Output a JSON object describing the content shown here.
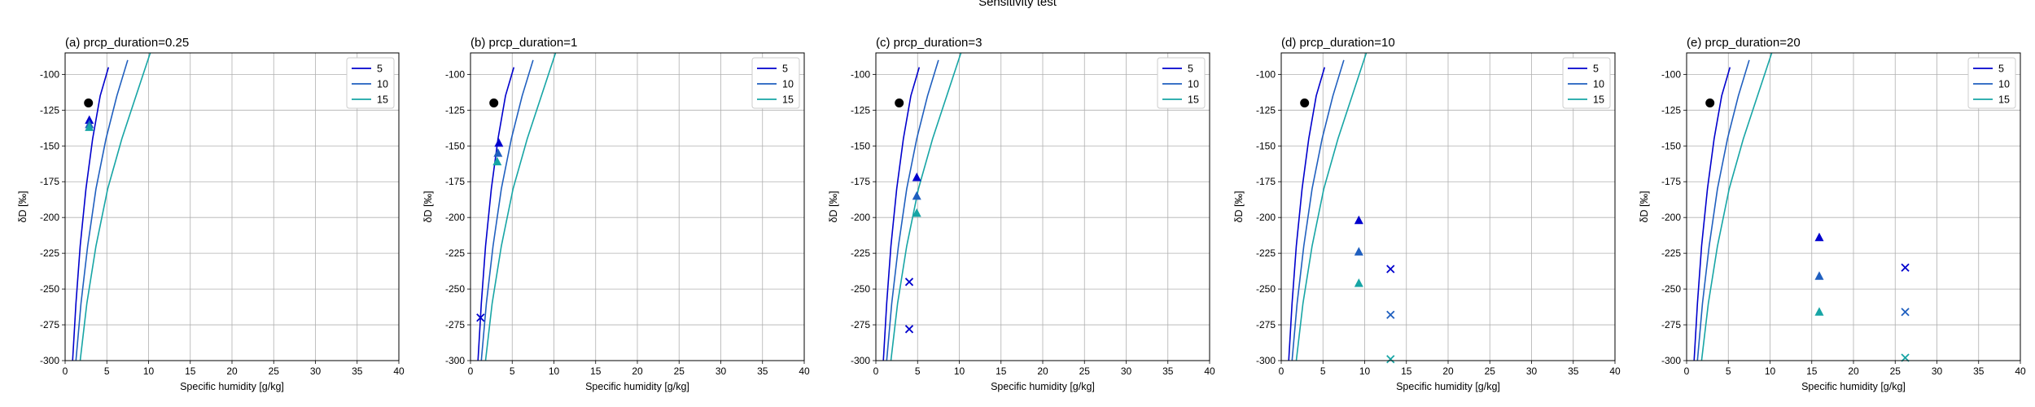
{
  "figure_title": "Sensitivity test",
  "chart_data": [
    {
      "type": "line",
      "title": "(a) prcp_duration=0.25",
      "xlabel": "Specific humidity [g/kg]",
      "ylabel": "δD [‰]",
      "xlim": [
        0,
        40
      ],
      "ylim": [
        -300,
        -85
      ],
      "xticks": [
        "0",
        "5",
        "10",
        "15",
        "20",
        "25",
        "30",
        "35",
        "40"
      ],
      "yticks": [
        "-100",
        "-125",
        "-150",
        "-175",
        "-200",
        "-225",
        "-250",
        "-275",
        "-300"
      ],
      "grid": true,
      "legend_position": "top-right",
      "series": [
        {
          "name": "5",
          "color": "#0000cd",
          "x": [
            0.9,
            1.3,
            1.8,
            2.5,
            3.3,
            4.2,
            5.2
          ],
          "y": [
            -300,
            -260,
            -220,
            -180,
            -145,
            -115,
            -95
          ]
        },
        {
          "name": "10",
          "color": "#1f5fbf",
          "x": [
            1.3,
            1.9,
            2.7,
            3.7,
            4.9,
            6.2,
            7.5
          ],
          "y": [
            -300,
            -260,
            -220,
            -180,
            -145,
            -115,
            -90
          ]
        },
        {
          "name": "15",
          "color": "#17a5a5",
          "x": [
            1.8,
            2.6,
            3.7,
            5.1,
            6.8,
            8.5,
            10.2
          ],
          "y": [
            -300,
            -260,
            -220,
            -180,
            -145,
            -115,
            -85
          ]
        }
      ],
      "markers": [
        {
          "kind": "circle",
          "color": "#000000",
          "x": 2.8,
          "y": -120
        },
        {
          "kind": "triangle",
          "color": "#0000cd",
          "x": 2.9,
          "y": -132
        },
        {
          "kind": "triangle",
          "color": "#1f5fbf",
          "x": 2.9,
          "y": -135
        },
        {
          "kind": "triangle",
          "color": "#17a5a5",
          "x": 2.9,
          "y": -137
        }
      ]
    },
    {
      "type": "line",
      "title": "(b) prcp_duration=1",
      "xlabel": "Specific humidity [g/kg]",
      "ylabel": "δD [‰]",
      "xlim": [
        0,
        40
      ],
      "ylim": [
        -300,
        -85
      ],
      "xticks": [
        "0",
        "5",
        "10",
        "15",
        "20",
        "25",
        "30",
        "35",
        "40"
      ],
      "yticks": [
        "-100",
        "-125",
        "-150",
        "-175",
        "-200",
        "-225",
        "-250",
        "-275",
        "-300"
      ],
      "grid": true,
      "legend_position": "top-right",
      "series": [
        {
          "name": "5",
          "color": "#0000cd",
          "x": [
            0.9,
            1.3,
            1.8,
            2.5,
            3.3,
            4.2,
            5.2
          ],
          "y": [
            -300,
            -260,
            -220,
            -180,
            -145,
            -115,
            -95
          ]
        },
        {
          "name": "10",
          "color": "#1f5fbf",
          "x": [
            1.3,
            1.9,
            2.7,
            3.7,
            4.9,
            6.2,
            7.5
          ],
          "y": [
            -300,
            -260,
            -220,
            -180,
            -145,
            -115,
            -90
          ]
        },
        {
          "name": "15",
          "color": "#17a5a5",
          "x": [
            1.8,
            2.6,
            3.7,
            5.1,
            6.8,
            8.5,
            10.2
          ],
          "y": [
            -300,
            -260,
            -220,
            -180,
            -145,
            -115,
            -85
          ]
        }
      ],
      "markers": [
        {
          "kind": "circle",
          "color": "#000000",
          "x": 2.8,
          "y": -120
        },
        {
          "kind": "triangle",
          "color": "#0000cd",
          "x": 3.4,
          "y": -148
        },
        {
          "kind": "triangle",
          "color": "#1f5fbf",
          "x": 3.3,
          "y": -155
        },
        {
          "kind": "triangle",
          "color": "#17a5a5",
          "x": 3.2,
          "y": -161
        },
        {
          "kind": "cross",
          "color": "#0000cd",
          "x": 1.2,
          "y": -270
        }
      ]
    },
    {
      "type": "line",
      "title": "(c) prcp_duration=3",
      "xlabel": "Specific humidity [g/kg]",
      "ylabel": "δD [‰]",
      "xlim": [
        0,
        40
      ],
      "ylim": [
        -300,
        -85
      ],
      "xticks": [
        "0",
        "5",
        "10",
        "15",
        "20",
        "25",
        "30",
        "35",
        "40"
      ],
      "yticks": [
        "-100",
        "-125",
        "-150",
        "-175",
        "-200",
        "-225",
        "-250",
        "-275",
        "-300"
      ],
      "grid": true,
      "legend_position": "top-right",
      "series": [
        {
          "name": "5",
          "color": "#0000cd",
          "x": [
            0.9,
            1.3,
            1.8,
            2.5,
            3.3,
            4.2,
            5.2
          ],
          "y": [
            -300,
            -260,
            -220,
            -180,
            -145,
            -115,
            -95
          ]
        },
        {
          "name": "10",
          "color": "#1f5fbf",
          "x": [
            1.3,
            1.9,
            2.7,
            3.7,
            4.9,
            6.2,
            7.5
          ],
          "y": [
            -300,
            -260,
            -220,
            -180,
            -145,
            -115,
            -90
          ]
        },
        {
          "name": "15",
          "color": "#17a5a5",
          "x": [
            1.8,
            2.6,
            3.7,
            5.1,
            6.8,
            8.5,
            10.2
          ],
          "y": [
            -300,
            -260,
            -220,
            -180,
            -145,
            -115,
            -85
          ]
        }
      ],
      "markers": [
        {
          "kind": "circle",
          "color": "#000000",
          "x": 2.8,
          "y": -120
        },
        {
          "kind": "triangle",
          "color": "#0000cd",
          "x": 4.9,
          "y": -172
        },
        {
          "kind": "triangle",
          "color": "#1f5fbf",
          "x": 4.9,
          "y": -185
        },
        {
          "kind": "triangle",
          "color": "#17a5a5",
          "x": 4.9,
          "y": -197
        },
        {
          "kind": "cross",
          "color": "#0000cd",
          "x": 4.0,
          "y": -245
        },
        {
          "kind": "cross",
          "color": "#0000cd",
          "x": 4.0,
          "y": -278
        }
      ]
    },
    {
      "type": "line",
      "title": "(d) prcp_duration=10",
      "xlabel": "Specific humidity [g/kg]",
      "ylabel": "δD [‰]",
      "xlim": [
        0,
        40
      ],
      "ylim": [
        -300,
        -85
      ],
      "xticks": [
        "0",
        "5",
        "10",
        "15",
        "20",
        "25",
        "30",
        "35",
        "40"
      ],
      "yticks": [
        "-100",
        "-125",
        "-150",
        "-175",
        "-200",
        "-225",
        "-250",
        "-275",
        "-300"
      ],
      "grid": true,
      "legend_position": "top-right",
      "series": [
        {
          "name": "5",
          "color": "#0000cd",
          "x": [
            0.9,
            1.3,
            1.8,
            2.5,
            3.3,
            4.2,
            5.2
          ],
          "y": [
            -300,
            -260,
            -220,
            -180,
            -145,
            -115,
            -95
          ]
        },
        {
          "name": "10",
          "color": "#1f5fbf",
          "x": [
            1.3,
            1.9,
            2.7,
            3.7,
            4.9,
            6.2,
            7.5
          ],
          "y": [
            -300,
            -260,
            -220,
            -180,
            -145,
            -115,
            -90
          ]
        },
        {
          "name": "15",
          "color": "#17a5a5",
          "x": [
            1.8,
            2.6,
            3.7,
            5.1,
            6.8,
            8.5,
            10.2
          ],
          "y": [
            -300,
            -260,
            -220,
            -180,
            -145,
            -115,
            -85
          ]
        }
      ],
      "markers": [
        {
          "kind": "circle",
          "color": "#000000",
          "x": 2.8,
          "y": -120
        },
        {
          "kind": "triangle",
          "color": "#0000cd",
          "x": 9.3,
          "y": -202
        },
        {
          "kind": "triangle",
          "color": "#1f5fbf",
          "x": 9.3,
          "y": -224
        },
        {
          "kind": "triangle",
          "color": "#17a5a5",
          "x": 9.3,
          "y": -246
        },
        {
          "kind": "cross",
          "color": "#0000cd",
          "x": 13.1,
          "y": -236
        },
        {
          "kind": "cross",
          "color": "#1f5fbf",
          "x": 13.1,
          "y": -268
        },
        {
          "kind": "cross",
          "color": "#17a5a5",
          "x": 13.1,
          "y": -299
        }
      ]
    },
    {
      "type": "line",
      "title": "(e) prcp_duration=20",
      "xlabel": "Specific humidity [g/kg]",
      "ylabel": "δD [‰]",
      "xlim": [
        0,
        40
      ],
      "ylim": [
        -300,
        -85
      ],
      "xticks": [
        "0",
        "5",
        "10",
        "15",
        "20",
        "25",
        "30",
        "35",
        "40"
      ],
      "yticks": [
        "-100",
        "-125",
        "-150",
        "-175",
        "-200",
        "-225",
        "-250",
        "-275",
        "-300"
      ],
      "grid": true,
      "legend_position": "top-right",
      "series": [
        {
          "name": "5",
          "color": "#0000cd",
          "x": [
            0.9,
            1.3,
            1.8,
            2.5,
            3.3,
            4.2,
            5.2
          ],
          "y": [
            -300,
            -260,
            -220,
            -180,
            -145,
            -115,
            -95
          ]
        },
        {
          "name": "10",
          "color": "#1f5fbf",
          "x": [
            1.3,
            1.9,
            2.7,
            3.7,
            4.9,
            6.2,
            7.5
          ],
          "y": [
            -300,
            -260,
            -220,
            -180,
            -145,
            -115,
            -90
          ]
        },
        {
          "name": "15",
          "color": "#17a5a5",
          "x": [
            1.8,
            2.6,
            3.7,
            5.1,
            6.8,
            8.5,
            10.2
          ],
          "y": [
            -300,
            -260,
            -220,
            -180,
            -145,
            -115,
            -85
          ]
        }
      ],
      "markers": [
        {
          "kind": "circle",
          "color": "#000000",
          "x": 2.8,
          "y": -120
        },
        {
          "kind": "triangle",
          "color": "#0000cd",
          "x": 15.9,
          "y": -214
        },
        {
          "kind": "triangle",
          "color": "#1f5fbf",
          "x": 15.9,
          "y": -241
        },
        {
          "kind": "triangle",
          "color": "#17a5a5",
          "x": 15.9,
          "y": -266
        },
        {
          "kind": "cross",
          "color": "#0000cd",
          "x": 26.2,
          "y": -235
        },
        {
          "kind": "cross",
          "color": "#1f5fbf",
          "x": 26.2,
          "y": -266
        },
        {
          "kind": "cross",
          "color": "#17a5a5",
          "x": 26.2,
          "y": -298
        }
      ]
    }
  ]
}
